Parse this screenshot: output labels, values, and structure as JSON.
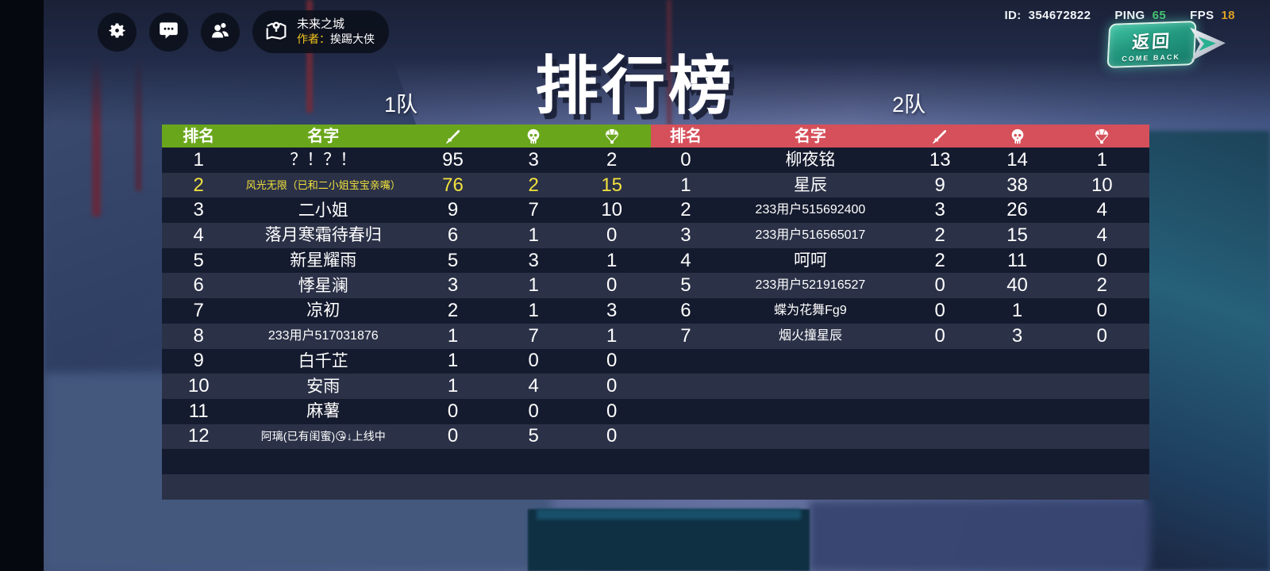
{
  "title": "排行榜",
  "top_bar": {
    "buttons": [
      {
        "name": "settings",
        "icon": "gear-icon"
      },
      {
        "name": "chat",
        "icon": "chat-bubble-icon"
      },
      {
        "name": "friends",
        "icon": "people-icon"
      }
    ],
    "map": {
      "icon": "map-pin-icon",
      "map_name": "未来之城",
      "author_label": "作者：",
      "author_name": "挨踢大侠"
    },
    "session": {
      "id_label": "ID:",
      "id_value": "354672822",
      "ping_label": "PING",
      "ping_value": "65",
      "fps_label": "FPS",
      "fps_value": "18"
    }
  },
  "back_button": {
    "label_cn": "返回",
    "label_en": "COME BACK",
    "icon": "arrow-right-icon"
  },
  "colors": {
    "team1_header": "#6aa61c",
    "team2_header": "#d5505a",
    "highlight_text": "#f2e23e",
    "ping_value": "#45c06c",
    "fps_value": "#dd9f27"
  },
  "column_icons": {
    "kills": "sword-icon",
    "deaths": "skull-icon",
    "drops": "parachute-icon"
  },
  "teams": [
    {
      "name": "1队",
      "header": {
        "rank": "排名",
        "player": "名字"
      },
      "rows": [
        {
          "rank": "1",
          "name": "？！？！",
          "kills": "95",
          "deaths": "3",
          "drops": "2",
          "size": "lg",
          "highlight": false
        },
        {
          "rank": "2",
          "name": "风光无限（已和二小姐宝宝亲嘴）",
          "kills": "76",
          "deaths": "2",
          "drops": "15",
          "size": "sm",
          "highlight": true
        },
        {
          "rank": "3",
          "name": "二小姐",
          "kills": "9",
          "deaths": "7",
          "drops": "10",
          "size": "lg",
          "highlight": false
        },
        {
          "rank": "4",
          "name": "落月寒霜待春归",
          "kills": "6",
          "deaths": "1",
          "drops": "0",
          "size": "lg",
          "highlight": false
        },
        {
          "rank": "5",
          "name": "新星耀雨",
          "kills": "5",
          "deaths": "3",
          "drops": "1",
          "size": "lg",
          "highlight": false
        },
        {
          "rank": "6",
          "name": "悸星澜",
          "kills": "3",
          "deaths": "1",
          "drops": "0",
          "size": "lg",
          "highlight": false
        },
        {
          "rank": "7",
          "name": "凉初",
          "kills": "2",
          "deaths": "1",
          "drops": "3",
          "size": "lg",
          "highlight": false
        },
        {
          "rank": "8",
          "name": "233用户517031876",
          "kills": "1",
          "deaths": "7",
          "drops": "1",
          "size": "md",
          "highlight": false
        },
        {
          "rank": "9",
          "name": "白千芷",
          "kills": "1",
          "deaths": "0",
          "drops": "0",
          "size": "lg",
          "highlight": false
        },
        {
          "rank": "10",
          "name": "安雨",
          "kills": "1",
          "deaths": "4",
          "drops": "0",
          "size": "lg",
          "highlight": false
        },
        {
          "rank": "11",
          "name": "麻薯",
          "kills": "0",
          "deaths": "0",
          "drops": "0",
          "size": "lg",
          "highlight": false
        },
        {
          "rank": "12",
          "name": "阿璃(已有闺蜜)😘↓上线中",
          "kills": "0",
          "deaths": "5",
          "drops": "0",
          "size": "sm2",
          "highlight": false
        }
      ]
    },
    {
      "name": "2队",
      "header": {
        "rank": "排名",
        "player": "名字"
      },
      "rows": [
        {
          "rank": "0",
          "name": "柳夜铭",
          "kills": "13",
          "deaths": "14",
          "drops": "1",
          "size": "lg",
          "highlight": false
        },
        {
          "rank": "1",
          "name": "星辰",
          "kills": "9",
          "deaths": "38",
          "drops": "10",
          "size": "lg",
          "highlight": false
        },
        {
          "rank": "2",
          "name": "233用户515692400",
          "kills": "3",
          "deaths": "26",
          "drops": "4",
          "size": "md",
          "highlight": false
        },
        {
          "rank": "3",
          "name": "233用户516565017",
          "kills": "2",
          "deaths": "15",
          "drops": "4",
          "size": "md",
          "highlight": false
        },
        {
          "rank": "4",
          "name": "呵呵",
          "kills": "2",
          "deaths": "11",
          "drops": "0",
          "size": "lg",
          "highlight": false
        },
        {
          "rank": "5",
          "name": "233用户521916527",
          "kills": "0",
          "deaths": "40",
          "drops": "2",
          "size": "md",
          "highlight": false
        },
        {
          "rank": "6",
          "name": "蝶为花舞Fg9",
          "kills": "0",
          "deaths": "1",
          "drops": "0",
          "size": "md",
          "highlight": false
        },
        {
          "rank": "7",
          "name": "烟火撞星辰",
          "kills": "0",
          "deaths": "3",
          "drops": "0",
          "size": "md",
          "highlight": false
        }
      ]
    }
  ],
  "layout": {
    "total_striped_rows": 14
  }
}
